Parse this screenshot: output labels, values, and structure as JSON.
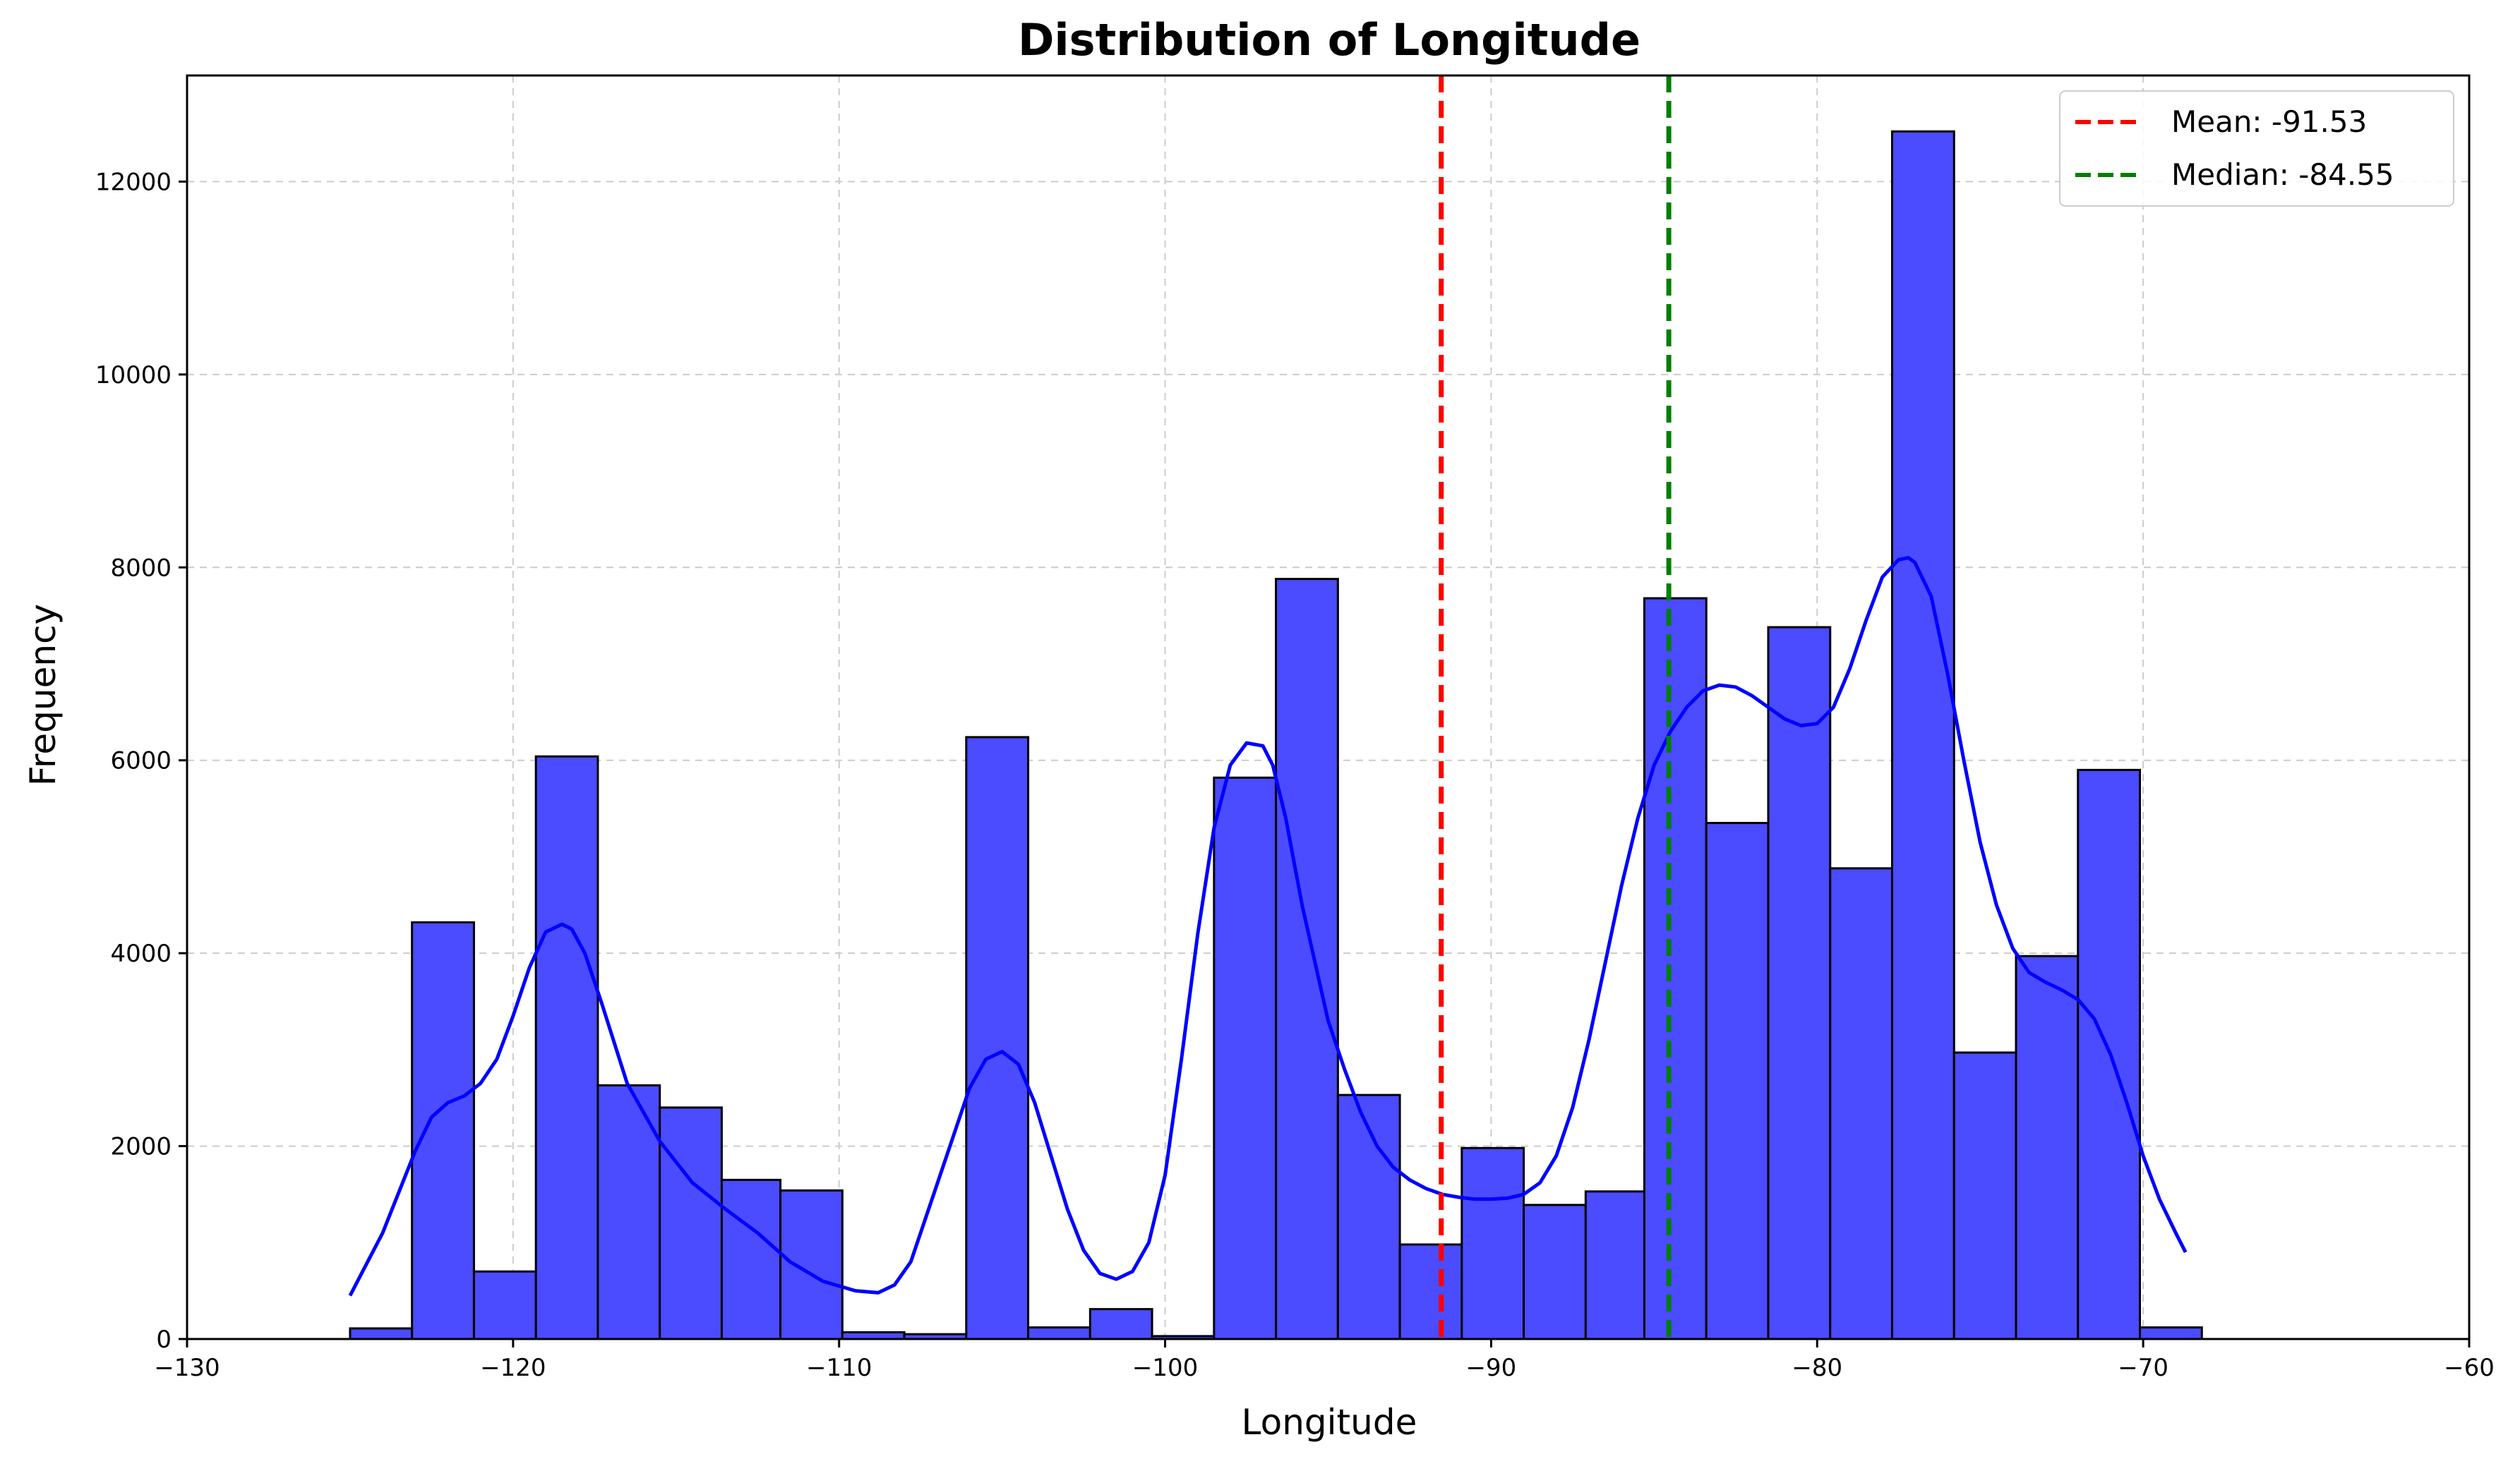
{
  "chart_data": {
    "type": "bar",
    "title": "Distribution of Longitude",
    "xlabel": "Longitude",
    "ylabel": "Frequency",
    "xlim": [
      -130,
      -60
    ],
    "ylim": [
      0,
      13100
    ],
    "grid": true,
    "legend_placement": "top-right",
    "x_ticks": [
      -130,
      -120,
      -110,
      -100,
      -90,
      -80,
      -70,
      -60
    ],
    "y_ticks": [
      0,
      2000,
      4000,
      6000,
      8000,
      10000,
      12000
    ],
    "x_tick_labels": [
      "−130",
      "−120",
      "−110",
      "−100",
      "−90",
      "−80",
      "−70",
      "−60"
    ],
    "y_tick_labels": [
      "0",
      "2000",
      "4000",
      "6000",
      "8000",
      "10000",
      "12000"
    ],
    "bin_edges": [
      -125.0,
      -123.1,
      -121.2,
      -119.3,
      -117.4,
      -115.5,
      -113.6,
      -111.8,
      -109.9,
      -108.0,
      -106.1,
      -104.2,
      -102.3,
      -100.4,
      -98.5,
      -96.6,
      -94.7,
      -92.8,
      -90.9,
      -89.0,
      -87.1,
      -85.3,
      -83.4,
      -81.5,
      -79.6,
      -77.7,
      -75.8,
      -73.9,
      -72.0,
      -70.1,
      -68.2
    ],
    "counts": [
      110,
      4320,
      700,
      6040,
      2630,
      2400,
      1650,
      1540,
      70,
      50,
      6240,
      120,
      310,
      30,
      5820,
      7880,
      2530,
      980,
      1980,
      1390,
      1530,
      7680,
      5350,
      7380,
      4880,
      12520,
      2970,
      3970,
      5900,
      120
    ],
    "kde": {
      "x": [
        -125.0,
        -124.0,
        -123.0,
        -122.5,
        -122.0,
        -121.5,
        -121.0,
        -120.5,
        -120.0,
        -119.5,
        -119.0,
        -118.5,
        -118.2,
        -117.8,
        -117.3,
        -116.5,
        -115.5,
        -114.5,
        -113.5,
        -112.5,
        -111.5,
        -110.5,
        -109.5,
        -108.8,
        -108.3,
        -107.8,
        -107.0,
        -106.0,
        -105.5,
        -105.0,
        -104.5,
        -104.0,
        -103.5,
        -103.0,
        -102.5,
        -102.0,
        -101.5,
        -101.0,
        -100.5,
        -100.0,
        -99.5,
        -99.0,
        -98.5,
        -98.0,
        -97.5,
        -97.0,
        -96.7,
        -96.3,
        -95.8,
        -95.0,
        -94.5,
        -94.0,
        -93.5,
        -93.0,
        -92.5,
        -92.0,
        -91.5,
        -91.0,
        -90.5,
        -90.0,
        -89.5,
        -89.0,
        -88.5,
        -88.0,
        -87.5,
        -87.0,
        -86.5,
        -86.0,
        -85.5,
        -85.0,
        -84.5,
        -84.0,
        -83.5,
        -83.0,
        -82.5,
        -82.0,
        -81.5,
        -81.0,
        -80.5,
        -80.0,
        -79.5,
        -79.0,
        -78.5,
        -78.0,
        -77.5,
        -77.2,
        -77.0,
        -76.5,
        -76.0,
        -75.5,
        -75.0,
        -74.5,
        -74.0,
        -73.5,
        -73.0,
        -72.5,
        -72.0,
        -71.5,
        -71.0,
        -70.5,
        -70.0,
        -69.5,
        -69.0,
        -68.7
      ],
      "y": [
        450,
        1100,
        1950,
        2300,
        2450,
        2520,
        2650,
        2900,
        3350,
        3850,
        4220,
        4300,
        4250,
        4000,
        3500,
        2650,
        2050,
        1620,
        1350,
        1100,
        800,
        600,
        500,
        480,
        560,
        800,
        1600,
        2600,
        2900,
        2980,
        2850,
        2450,
        1900,
        1350,
        920,
        680,
        620,
        700,
        1000,
        1700,
        2900,
        4200,
        5300,
        5950,
        6180,
        6150,
        5950,
        5400,
        4500,
        3300,
        2800,
        2350,
        2000,
        1780,
        1650,
        1560,
        1500,
        1470,
        1450,
        1450,
        1460,
        1500,
        1620,
        1900,
        2400,
        3100,
        3900,
        4700,
        5400,
        5950,
        6300,
        6550,
        6720,
        6780,
        6760,
        6670,
        6550,
        6430,
        6360,
        6380,
        6550,
        6950,
        7450,
        7900,
        8080,
        8100,
        8050,
        7700,
        6900,
        6000,
        5150,
        4500,
        4050,
        3800,
        3700,
        3620,
        3520,
        3320,
        2950,
        2450,
        1900,
        1450,
        1100,
        900
      ]
    },
    "mean_value": -91.53,
    "median_value": -84.55,
    "legend": [
      {
        "label": "Mean: -91.53",
        "color": "#ff0000"
      },
      {
        "label": "Median: -84.55",
        "color": "#008000"
      }
    ],
    "colors": {
      "bar_fill": "#4b4bff",
      "bar_edge": "#000000",
      "kde_line": "#0000ff",
      "mean_line": "#ff0000",
      "median_line": "#008000",
      "grid": "#cccccc"
    }
  }
}
